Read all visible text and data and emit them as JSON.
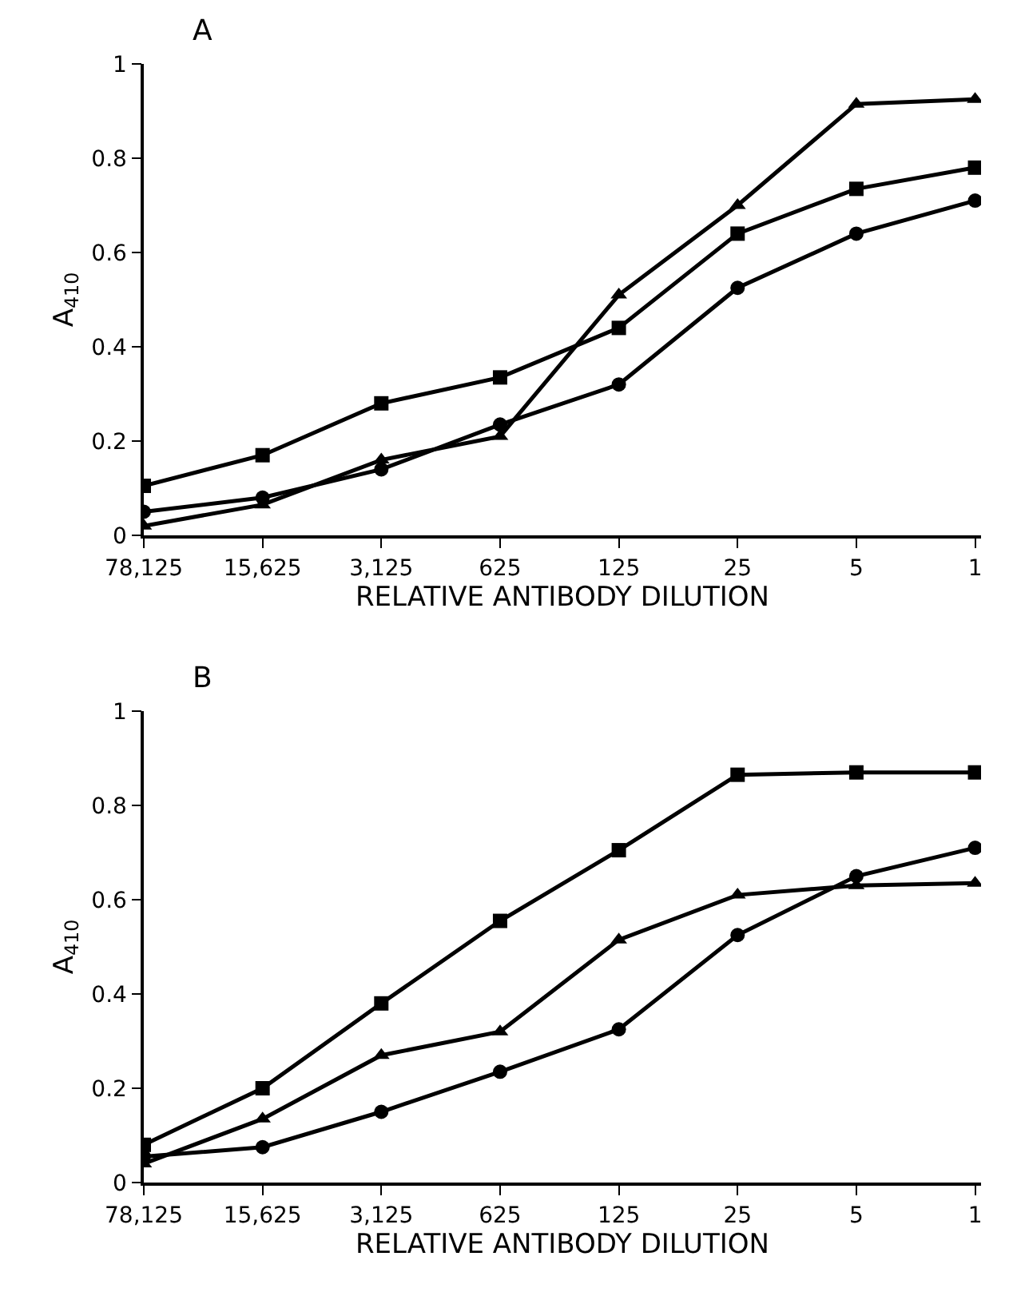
{
  "chart_data": [
    {
      "type": "line",
      "title": "A",
      "xlabel": "RELATIVE ANTIBODY DILUTION",
      "ylabel": "A$_{410}$",
      "categories": [
        "78,125",
        "15,625",
        "3,125",
        "625",
        "125",
        "25",
        "5",
        "1"
      ],
      "ylim": [
        0,
        1
      ],
      "yticks": [
        0,
        0.2,
        0.4,
        0.6,
        0.8,
        1
      ],
      "line_style": "solid",
      "series": [
        {
          "color": "#000000",
          "marker": "square",
          "values": [
            0.105,
            0.17,
            0.28,
            0.335,
            0.44,
            0.64,
            0.735,
            0.78
          ]
        },
        {
          "color": "#000000",
          "marker": "circle",
          "values": [
            0.05,
            0.08,
            0.14,
            0.235,
            0.32,
            0.525,
            0.64,
            0.71
          ]
        },
        {
          "color": "#000000",
          "marker": "triangle",
          "values": [
            0.02,
            0.065,
            0.16,
            0.21,
            0.51,
            0.7,
            0.915,
            0.925
          ]
        }
      ]
    },
    {
      "type": "line",
      "title": "B",
      "xlabel": "RELATIVE ANTIBODY DILUTION",
      "ylabel": "A$_{410}$",
      "categories": [
        "78,125",
        "15,625",
        "3,125",
        "625",
        "125",
        "25",
        "5",
        "1"
      ],
      "ylim": [
        0,
        1
      ],
      "yticks": [
        0,
        0.2,
        0.4,
        0.6,
        0.8,
        1
      ],
      "line_style": "solid",
      "series": [
        {
          "color": "#000000",
          "marker": "square",
          "values": [
            0.08,
            0.2,
            0.38,
            0.555,
            0.705,
            0.865,
            0.87,
            0.87
          ]
        },
        {
          "color": "#000000",
          "marker": "triangle",
          "values": [
            0.04,
            0.135,
            0.27,
            0.32,
            0.515,
            0.61,
            0.63,
            0.635
          ]
        },
        {
          "color": "#000000",
          "marker": "circle",
          "values": [
            0.055,
            0.075,
            0.15,
            0.235,
            0.325,
            0.525,
            0.65,
            0.71
          ]
        }
      ]
    }
  ]
}
